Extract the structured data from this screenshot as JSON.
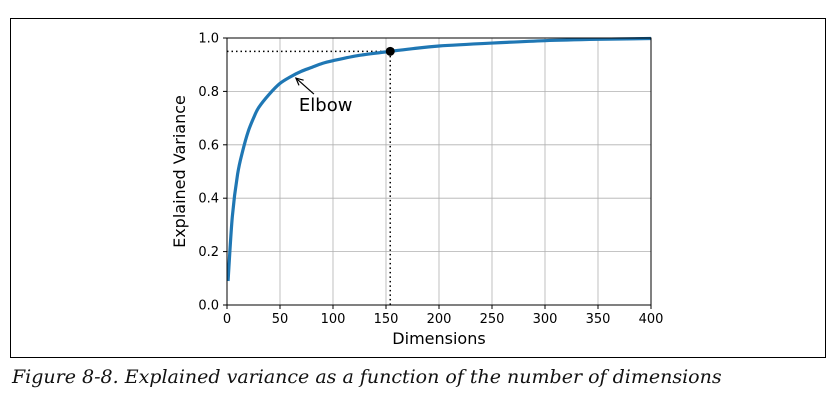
{
  "caption": "Figure 8-8. Explained variance as a function of the number of dimensions",
  "chart_data": {
    "type": "line",
    "title": "",
    "xlabel": "Dimensions",
    "ylabel": "Explained Variance",
    "xlim": [
      0,
      400
    ],
    "ylim": [
      0.0,
      1.0
    ],
    "grid": true,
    "x_ticks": [
      "0",
      "50",
      "100",
      "150",
      "200",
      "250",
      "300",
      "350",
      "400"
    ],
    "y_ticks": [
      "0.0",
      "0.2",
      "0.4",
      "0.6",
      "0.8",
      "1.0"
    ],
    "series": [
      {
        "color": "#1f77b4",
        "x": [
          1,
          5,
          10,
          15,
          20,
          25,
          30,
          40,
          50,
          60,
          70,
          80,
          90,
          100,
          125,
          154,
          175,
          200,
          250,
          300,
          350,
          400
        ],
        "y": [
          0.09,
          0.33,
          0.49,
          0.58,
          0.65,
          0.7,
          0.74,
          0.79,
          0.83,
          0.855,
          0.875,
          0.89,
          0.905,
          0.915,
          0.935,
          0.95,
          0.96,
          0.97,
          0.981,
          0.99,
          0.995,
          0.998
        ]
      }
    ],
    "highlight_point": {
      "x": 154,
      "y": 0.95
    },
    "annotation": {
      "text": "Elbow",
      "x": 65,
      "y": 0.85
    }
  }
}
